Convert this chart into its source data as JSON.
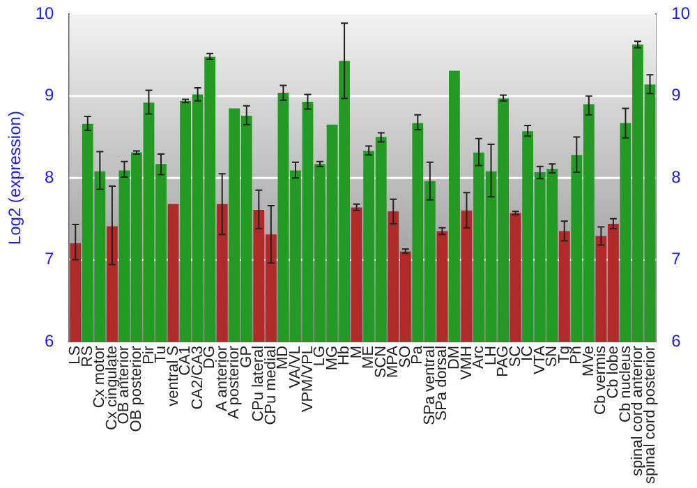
{
  "chart_data": {
    "type": "bar",
    "ylabel": "Log2 (expression)",
    "categories": [
      "LS",
      "RS",
      "Cx motor",
      "Cx cingulate",
      "OB anterior",
      "OB posterior",
      "Pir",
      "Tu",
      "ventral S",
      "CA1",
      "CA2/CA3",
      "DG",
      "A anterior",
      "A posterior",
      "GP",
      "CPu lateral",
      "CPu medial",
      "MD",
      "VA/VL",
      "VPM/VPL",
      "LG",
      "MG",
      "Hb",
      "M",
      "ME",
      "SCN",
      "MPA",
      "SO",
      "Pa",
      "SPa ventral",
      "SPa dorsal",
      "DM",
      "VMH",
      "Arc",
      "LH",
      "PAG",
      "SC",
      "IC",
      "VTA",
      "SN",
      "Tg",
      "Pn",
      "MVe",
      "Cb vermis",
      "Cb lobe",
      "Cb nucleus",
      "spinal cord anterior",
      "spinal cord posterior"
    ],
    "values": [
      7.2,
      8.66,
      8.08,
      7.41,
      8.09,
      8.31,
      8.92,
      8.17,
      7.68,
      8.94,
      9.02,
      9.48,
      7.68,
      8.85,
      8.76,
      7.61,
      7.31,
      9.04,
      8.09,
      8.93,
      8.17,
      8.65,
      9.43,
      7.64,
      8.33,
      8.5,
      7.59,
      7.1,
      8.67,
      7.96,
      7.35,
      9.31,
      7.6,
      8.31,
      8.08,
      8.97,
      7.57,
      8.57,
      8.07,
      8.11,
      7.35,
      8.28,
      8.9,
      7.29,
      7.44,
      8.67,
      9.63,
      9.14
    ],
    "errors": [
      [
        7.0,
        7.43
      ],
      [
        8.58,
        8.75
      ],
      [
        7.86,
        8.32
      ],
      [
        6.94,
        7.9
      ],
      [
        8.01,
        8.2
      ],
      [
        8.29,
        8.33
      ],
      [
        8.78,
        9.07
      ],
      [
        8.04,
        8.29
      ],
      null,
      [
        8.92,
        8.96
      ],
      [
        8.94,
        9.1
      ],
      [
        9.45,
        9.52
      ],
      [
        7.31,
        8.05
      ],
      null,
      [
        8.65,
        8.88
      ],
      [
        7.38,
        7.85
      ],
      [
        6.96,
        7.66
      ],
      [
        8.95,
        9.13
      ],
      [
        8.0,
        8.19
      ],
      [
        8.84,
        9.02
      ],
      [
        8.14,
        8.2
      ],
      null,
      [
        8.97,
        9.89
      ],
      [
        7.6,
        7.68
      ],
      [
        8.28,
        8.39
      ],
      [
        8.44,
        8.55
      ],
      [
        7.44,
        7.74
      ],
      [
        7.08,
        7.13
      ],
      [
        8.59,
        8.77
      ],
      [
        7.73,
        8.19
      ],
      [
        7.31,
        7.39
      ],
      null,
      [
        7.39,
        7.82
      ],
      [
        8.15,
        8.48
      ],
      [
        7.77,
        8.41
      ],
      [
        8.94,
        9.01
      ],
      [
        7.55,
        7.59
      ],
      [
        8.51,
        8.64
      ],
      [
        7.99,
        8.14
      ],
      [
        8.06,
        8.17
      ],
      [
        7.23,
        7.47
      ],
      [
        8.07,
        8.5
      ],
      [
        8.77,
        9.0
      ],
      [
        7.18,
        7.4
      ],
      [
        7.38,
        7.5
      ],
      [
        8.49,
        8.85
      ],
      [
        9.59,
        9.67
      ],
      [
        9.03,
        9.26
      ]
    ],
    "colors": [
      "#b02a2a",
      "#239a23",
      "#239a23",
      "#b02a2a",
      "#239a23",
      "#239a23",
      "#239a23",
      "#239a23",
      "#b02a2a",
      "#239a23",
      "#239a23",
      "#239a23",
      "#b02a2a",
      "#239a23",
      "#239a23",
      "#b02a2a",
      "#b02a2a",
      "#239a23",
      "#239a23",
      "#239a23",
      "#239a23",
      "#239a23",
      "#239a23",
      "#b02a2a",
      "#239a23",
      "#239a23",
      "#b02a2a",
      "#b02a2a",
      "#239a23",
      "#239a23",
      "#b02a2a",
      "#239a23",
      "#b02a2a",
      "#239a23",
      "#239a23",
      "#239a23",
      "#b02a2a",
      "#239a23",
      "#239a23",
      "#239a23",
      "#b02a2a",
      "#239a23",
      "#239a23",
      "#b02a2a",
      "#b02a2a",
      "#239a23",
      "#239a23",
      "#239a23"
    ],
    "ylim": [
      6,
      10
    ],
    "yticks": [
      6,
      7,
      8,
      9,
      10
    ],
    "y2lim": [
      6,
      10
    ],
    "y2ticks": [
      6,
      7,
      8,
      9,
      10
    ],
    "grid": "y",
    "legend": false
  }
}
